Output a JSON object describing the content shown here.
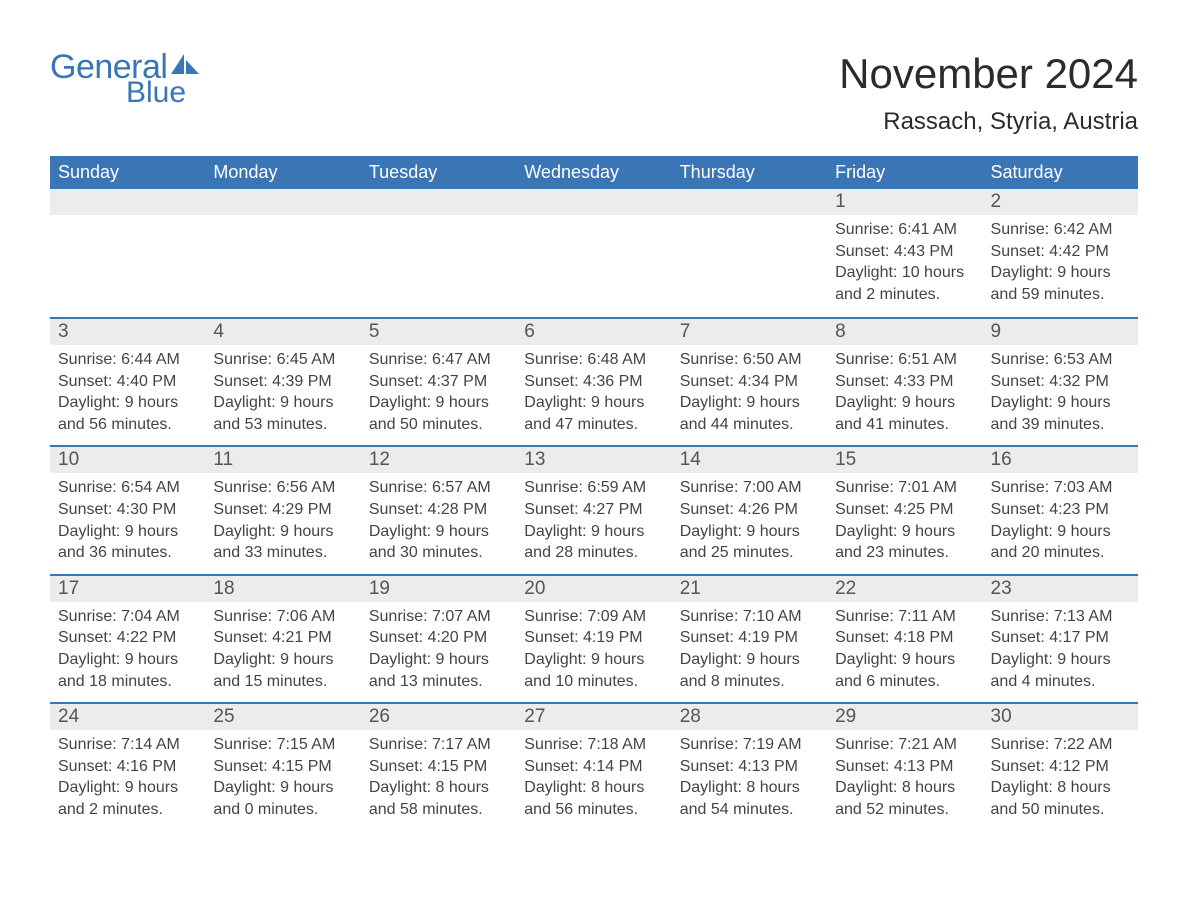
{
  "logo": {
    "text1": "General",
    "text2": "Blue",
    "color": "#3a75b6"
  },
  "title": "November 2024",
  "location": "Rassach, Styria, Austria",
  "colors": {
    "header_bg": "#3a75b6",
    "header_text": "#ffffff",
    "daynum_bg": "#ececec",
    "daynum_text": "#555555",
    "body_text": "#444444",
    "rule": "#3a75b6",
    "page_bg": "#ffffff"
  },
  "fonts": {
    "title_size": 42,
    "location_size": 24,
    "header_size": 18,
    "daynum_size": 19,
    "body_size": 16
  },
  "day_headers": [
    "Sunday",
    "Monday",
    "Tuesday",
    "Wednesday",
    "Thursday",
    "Friday",
    "Saturday"
  ],
  "weeks": [
    [
      {
        "empty": true
      },
      {
        "empty": true
      },
      {
        "empty": true
      },
      {
        "empty": true
      },
      {
        "empty": true
      },
      {
        "n": "1",
        "sunrise": "6:41 AM",
        "sunset": "4:43 PM",
        "daylight": "10 hours and 2 minutes."
      },
      {
        "n": "2",
        "sunrise": "6:42 AM",
        "sunset": "4:42 PM",
        "daylight": "9 hours and 59 minutes."
      }
    ],
    [
      {
        "n": "3",
        "sunrise": "6:44 AM",
        "sunset": "4:40 PM",
        "daylight": "9 hours and 56 minutes."
      },
      {
        "n": "4",
        "sunrise": "6:45 AM",
        "sunset": "4:39 PM",
        "daylight": "9 hours and 53 minutes."
      },
      {
        "n": "5",
        "sunrise": "6:47 AM",
        "sunset": "4:37 PM",
        "daylight": "9 hours and 50 minutes."
      },
      {
        "n": "6",
        "sunrise": "6:48 AM",
        "sunset": "4:36 PM",
        "daylight": "9 hours and 47 minutes."
      },
      {
        "n": "7",
        "sunrise": "6:50 AM",
        "sunset": "4:34 PM",
        "daylight": "9 hours and 44 minutes."
      },
      {
        "n": "8",
        "sunrise": "6:51 AM",
        "sunset": "4:33 PM",
        "daylight": "9 hours and 41 minutes."
      },
      {
        "n": "9",
        "sunrise": "6:53 AM",
        "sunset": "4:32 PM",
        "daylight": "9 hours and 39 minutes."
      }
    ],
    [
      {
        "n": "10",
        "sunrise": "6:54 AM",
        "sunset": "4:30 PM",
        "daylight": "9 hours and 36 minutes."
      },
      {
        "n": "11",
        "sunrise": "6:56 AM",
        "sunset": "4:29 PM",
        "daylight": "9 hours and 33 minutes."
      },
      {
        "n": "12",
        "sunrise": "6:57 AM",
        "sunset": "4:28 PM",
        "daylight": "9 hours and 30 minutes."
      },
      {
        "n": "13",
        "sunrise": "6:59 AM",
        "sunset": "4:27 PM",
        "daylight": "9 hours and 28 minutes."
      },
      {
        "n": "14",
        "sunrise": "7:00 AM",
        "sunset": "4:26 PM",
        "daylight": "9 hours and 25 minutes."
      },
      {
        "n": "15",
        "sunrise": "7:01 AM",
        "sunset": "4:25 PM",
        "daylight": "9 hours and 23 minutes."
      },
      {
        "n": "16",
        "sunrise": "7:03 AM",
        "sunset": "4:23 PM",
        "daylight": "9 hours and 20 minutes."
      }
    ],
    [
      {
        "n": "17",
        "sunrise": "7:04 AM",
        "sunset": "4:22 PM",
        "daylight": "9 hours and 18 minutes."
      },
      {
        "n": "18",
        "sunrise": "7:06 AM",
        "sunset": "4:21 PM",
        "daylight": "9 hours and 15 minutes."
      },
      {
        "n": "19",
        "sunrise": "7:07 AM",
        "sunset": "4:20 PM",
        "daylight": "9 hours and 13 minutes."
      },
      {
        "n": "20",
        "sunrise": "7:09 AM",
        "sunset": "4:19 PM",
        "daylight": "9 hours and 10 minutes."
      },
      {
        "n": "21",
        "sunrise": "7:10 AM",
        "sunset": "4:19 PM",
        "daylight": "9 hours and 8 minutes."
      },
      {
        "n": "22",
        "sunrise": "7:11 AM",
        "sunset": "4:18 PM",
        "daylight": "9 hours and 6 minutes."
      },
      {
        "n": "23",
        "sunrise": "7:13 AM",
        "sunset": "4:17 PM",
        "daylight": "9 hours and 4 minutes."
      }
    ],
    [
      {
        "n": "24",
        "sunrise": "7:14 AM",
        "sunset": "4:16 PM",
        "daylight": "9 hours and 2 minutes."
      },
      {
        "n": "25",
        "sunrise": "7:15 AM",
        "sunset": "4:15 PM",
        "daylight": "9 hours and 0 minutes."
      },
      {
        "n": "26",
        "sunrise": "7:17 AM",
        "sunset": "4:15 PM",
        "daylight": "8 hours and 58 minutes."
      },
      {
        "n": "27",
        "sunrise": "7:18 AM",
        "sunset": "4:14 PM",
        "daylight": "8 hours and 56 minutes."
      },
      {
        "n": "28",
        "sunrise": "7:19 AM",
        "sunset": "4:13 PM",
        "daylight": "8 hours and 54 minutes."
      },
      {
        "n": "29",
        "sunrise": "7:21 AM",
        "sunset": "4:13 PM",
        "daylight": "8 hours and 52 minutes."
      },
      {
        "n": "30",
        "sunrise": "7:22 AM",
        "sunset": "4:12 PM",
        "daylight": "8 hours and 50 minutes."
      }
    ]
  ],
  "labels": {
    "sunrise": "Sunrise:",
    "sunset": "Sunset:",
    "daylight": "Daylight:"
  }
}
